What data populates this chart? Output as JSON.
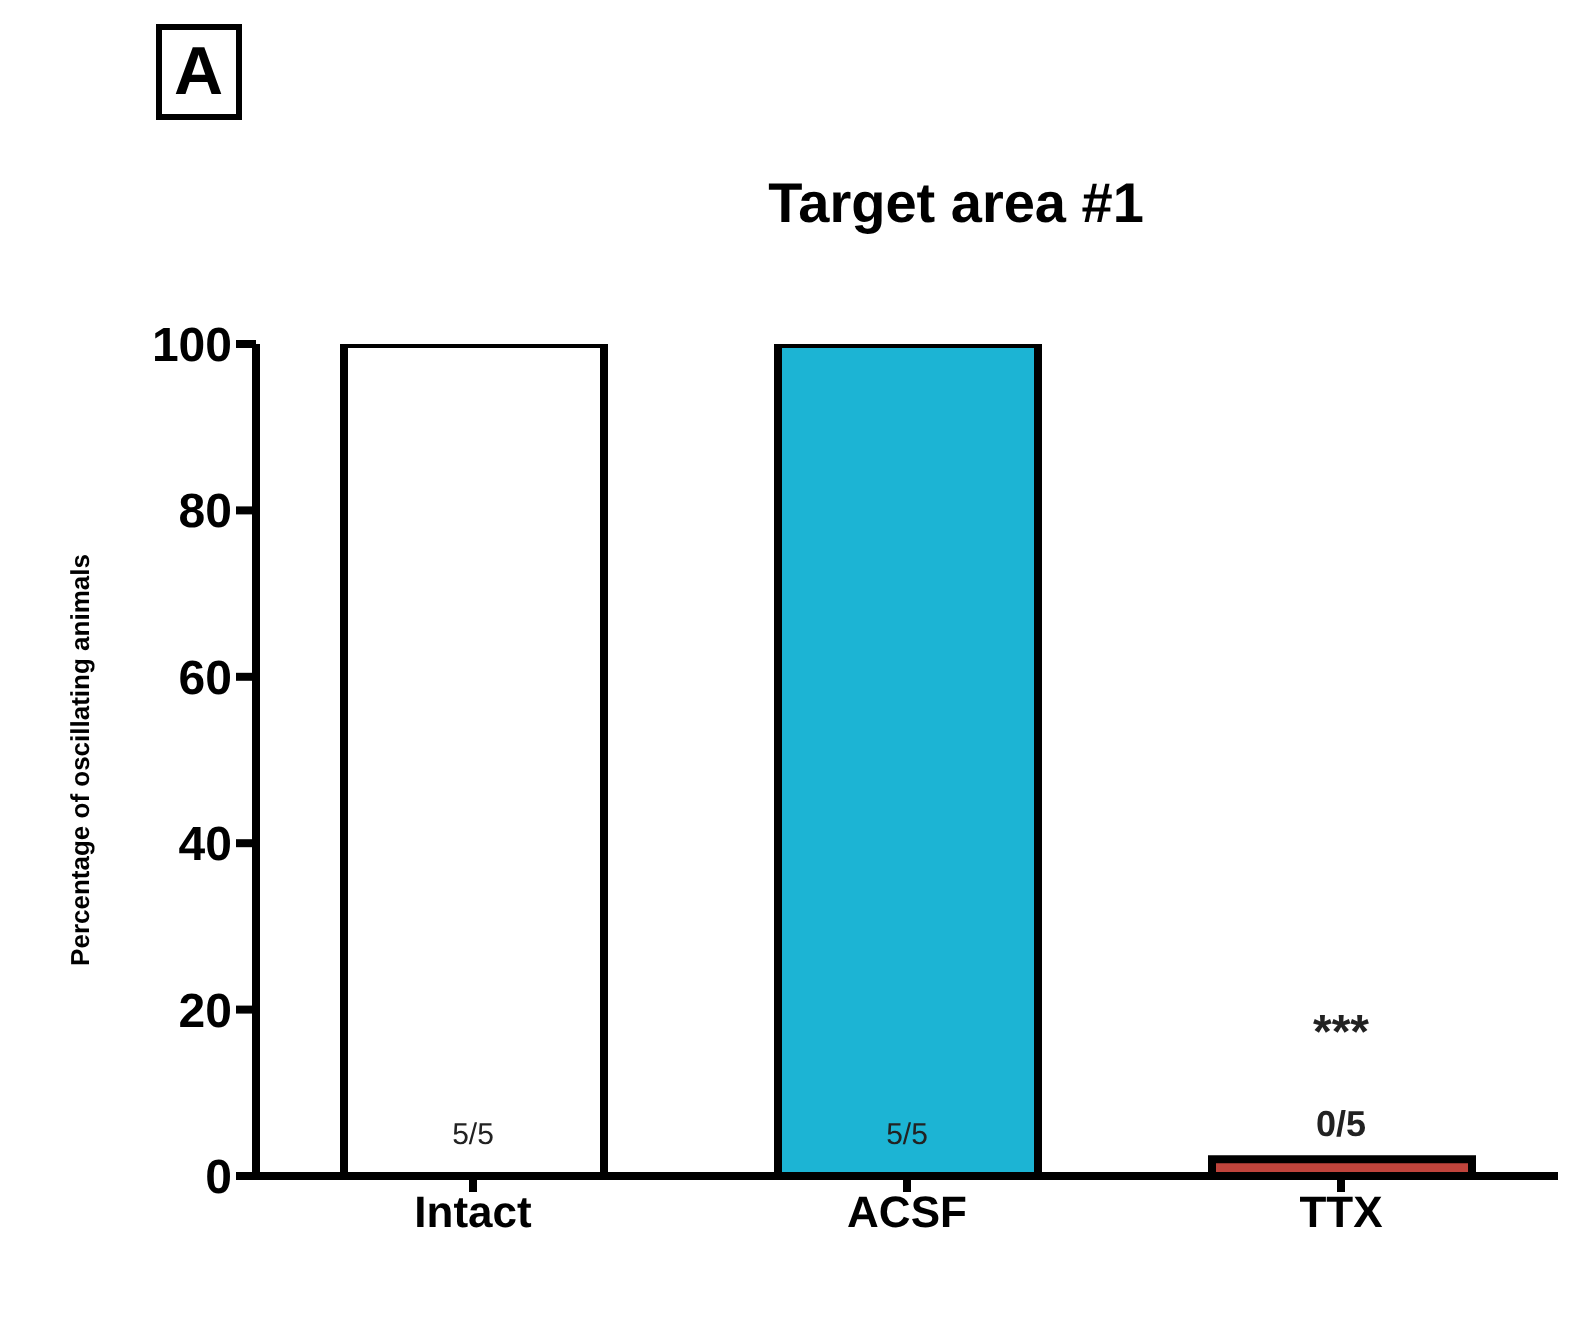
{
  "chart_data": {
    "type": "bar",
    "title": "Target area #1",
    "ylabel": "Percentage of oscillating animals",
    "categories": [
      "Intact",
      "ACSF",
      "TTX"
    ],
    "values": [
      100,
      100,
      2
    ],
    "colors": [
      "#ffffff",
      "#1cb4d4",
      "#c0443c"
    ],
    "ylim": [
      0,
      100
    ],
    "yticks": [
      0,
      20,
      40,
      60,
      80,
      100
    ],
    "grid": false,
    "annotations": [
      "A",
      "5/5",
      "5/5",
      "0/5",
      "***"
    ]
  }
}
